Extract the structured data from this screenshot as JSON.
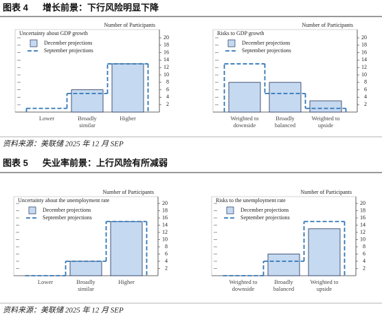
{
  "figures": [
    {
      "label": "图表 4",
      "title": "增长前景：下行风险明显下降",
      "source": "资料来源：美联储 2025 年 12 月 SEP"
    },
    {
      "label": "图表 5",
      "title": "失业率前景：上行风险有所减弱",
      "source": "资料来源：美联储 2025 年 12 月 SEP"
    }
  ],
  "chart_data": [
    {
      "type": "bar",
      "title": "Uncertainty about GDP growth",
      "y_axis_label": "Number of Participants",
      "categories": [
        "Lower",
        "Broadly similar",
        "Higher"
      ],
      "series": [
        {
          "name": "December projections",
          "color": "#c5d9f1",
          "kind": "bar",
          "values": [
            0,
            6,
            13
          ]
        },
        {
          "name": "September projections",
          "color": "#2e75b6",
          "kind": "dashed",
          "values": [
            1,
            5,
            13
          ]
        }
      ],
      "ylim": [
        0,
        20
      ],
      "yticks": [
        2,
        4,
        6,
        8,
        10,
        12,
        14,
        16,
        18,
        20
      ]
    },
    {
      "type": "bar",
      "title": "Risks to GDP growth",
      "y_axis_label": "Number of Participants",
      "categories": [
        "Weighted to downside",
        "Broadly balanced",
        "Weighted to upside"
      ],
      "series": [
        {
          "name": "December projections",
          "color": "#c5d9f1",
          "kind": "bar",
          "values": [
            8,
            8,
            3
          ]
        },
        {
          "name": "September projections",
          "color": "#2e75b6",
          "kind": "dashed",
          "values": [
            13,
            5,
            1
          ]
        }
      ],
      "ylim": [
        0,
        20
      ],
      "yticks": [
        2,
        4,
        6,
        8,
        10,
        12,
        14,
        16,
        18,
        20
      ]
    },
    {
      "type": "bar",
      "title": "Uncertainty about the unemployment rate",
      "y_axis_label": "Number of Participants",
      "categories": [
        "Lower",
        "Broadly similar",
        "Higher"
      ],
      "series": [
        {
          "name": "December projections",
          "color": "#c5d9f1",
          "kind": "bar",
          "values": [
            0,
            4,
            15
          ]
        },
        {
          "name": "September projections",
          "color": "#2e75b6",
          "kind": "dashed",
          "values": [
            0,
            4,
            15
          ]
        }
      ],
      "ylim": [
        0,
        20
      ],
      "yticks": [
        2,
        4,
        6,
        8,
        10,
        12,
        14,
        16,
        18,
        20
      ]
    },
    {
      "type": "bar",
      "title": "Risks to the unemployment rate",
      "y_axis_label": "Number of Participants",
      "categories": [
        "Weighted to downside",
        "Broadly balanced",
        "Weighted to upside"
      ],
      "series": [
        {
          "name": "December projections",
          "color": "#c5d9f1",
          "kind": "bar",
          "values": [
            0,
            6,
            13
          ]
        },
        {
          "name": "September projections",
          "color": "#2e75b6",
          "kind": "dashed",
          "values": [
            0,
            4,
            15
          ]
        }
      ],
      "ylim": [
        0,
        20
      ],
      "yticks": [
        2,
        4,
        6,
        8,
        10,
        12,
        14,
        16,
        18,
        20
      ]
    }
  ]
}
